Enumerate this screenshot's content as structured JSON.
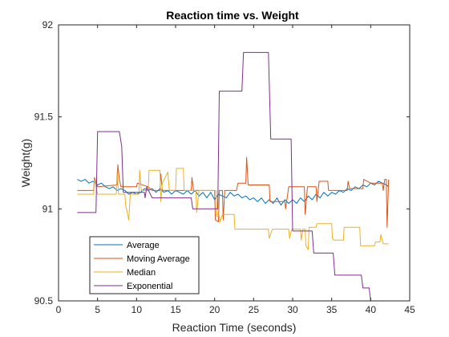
{
  "chart_data": {
    "type": "line",
    "title": "Reaction time vs. Weight",
    "xlabel": "Reaction Time (seconds)",
    "ylabel": "Weight(g)",
    "xlim": [
      0,
      45
    ],
    "ylim": [
      90.5,
      92
    ],
    "xticks": [
      "0",
      "5",
      "10",
      "15",
      "20",
      "25",
      "30",
      "35",
      "40",
      "45"
    ],
    "yticks": [
      "90.5",
      "91",
      "91.5",
      "92"
    ],
    "grid": false,
    "legend_position": "bottom-left",
    "series": [
      {
        "name": "Average",
        "color": "#0072BD",
        "points": [
          [
            2.4,
            91.16
          ],
          [
            2.9,
            91.15
          ],
          [
            3.4,
            91.16
          ],
          [
            3.9,
            91.14
          ],
          [
            4.4,
            91.15
          ],
          [
            5.0,
            91.13
          ],
          [
            5.5,
            91.14
          ],
          [
            6.0,
            91.12
          ],
          [
            6.5,
            91.11
          ],
          [
            7.0,
            91.12
          ],
          [
            7.5,
            91.1
          ],
          [
            8.0,
            91.11
          ],
          [
            8.5,
            91.1
          ],
          [
            9.0,
            91.08
          ],
          [
            9.5,
            91.09
          ],
          [
            10.0,
            91.08
          ],
          [
            10.5,
            91.09
          ],
          [
            11.0,
            91.11
          ],
          [
            11.5,
            91.1
          ],
          [
            12.0,
            91.11
          ],
          [
            12.5,
            91.09
          ],
          [
            13.0,
            91.11
          ],
          [
            13.5,
            91.09
          ],
          [
            14.0,
            91.1
          ],
          [
            14.5,
            91.08
          ],
          [
            15.0,
            91.1
          ],
          [
            15.5,
            91.09
          ],
          [
            16.0,
            91.08
          ],
          [
            16.5,
            91.1
          ],
          [
            17.0,
            91.08
          ],
          [
            17.5,
            91.1
          ],
          [
            18.0,
            91.07
          ],
          [
            18.5,
            91.09
          ],
          [
            19.0,
            91.06
          ],
          [
            19.5,
            91.09
          ],
          [
            20.0,
            91.05
          ],
          [
            20.5,
            91.08
          ],
          [
            21.0,
            91.07
          ],
          [
            21.5,
            91.06
          ],
          [
            22.0,
            91.09
          ],
          [
            22.5,
            91.07
          ],
          [
            23.0,
            91.08
          ],
          [
            23.5,
            91.06
          ],
          [
            24.0,
            91.07
          ],
          [
            24.5,
            91.05
          ],
          [
            25.0,
            91.06
          ],
          [
            25.5,
            91.04
          ],
          [
            26.0,
            91.06
          ],
          [
            26.5,
            91.03
          ],
          [
            27.0,
            91.05
          ],
          [
            27.5,
            91.03
          ],
          [
            28.0,
            91.06
          ],
          [
            28.5,
            91.02
          ],
          [
            29.0,
            91.05
          ],
          [
            29.5,
            91.03
          ],
          [
            30.0,
            91.05
          ],
          [
            30.5,
            91.03
          ],
          [
            31.0,
            91.06
          ],
          [
            31.5,
            91.04
          ],
          [
            32.0,
            91.07
          ],
          [
            32.5,
            91.05
          ],
          [
            33.0,
            91.08
          ],
          [
            33.5,
            91.06
          ],
          [
            34.0,
            91.09
          ],
          [
            34.5,
            91.07
          ],
          [
            35.0,
            91.09
          ],
          [
            35.5,
            91.08
          ],
          [
            36.0,
            91.1
          ],
          [
            36.5,
            91.09
          ],
          [
            37.0,
            91.11
          ],
          [
            37.5,
            91.1
          ],
          [
            38.0,
            91.12
          ],
          [
            38.5,
            91.11
          ],
          [
            39.0,
            91.13
          ],
          [
            39.5,
            91.12
          ],
          [
            40.0,
            91.14
          ],
          [
            40.5,
            91.13
          ],
          [
            41.0,
            91.15
          ],
          [
            41.5,
            91.14
          ],
          [
            42.0,
            91.13
          ],
          [
            42.3,
            91.12
          ]
        ]
      },
      {
        "name": "Moving Average",
        "color": "#D95319",
        "points": [
          [
            2.4,
            91.1
          ],
          [
            4.5,
            91.1
          ],
          [
            4.6,
            91.17
          ],
          [
            5.0,
            91.12
          ],
          [
            7.5,
            91.13
          ],
          [
            7.6,
            91.24
          ],
          [
            7.8,
            91.16
          ],
          [
            8.0,
            91.12
          ],
          [
            10.0,
            91.12
          ],
          [
            10.1,
            91.14
          ],
          [
            11.5,
            91.12
          ],
          [
            12.0,
            91.1
          ],
          [
            13.0,
            91.1
          ],
          [
            13.1,
            91.19
          ],
          [
            13.3,
            91.1
          ],
          [
            15.0,
            91.1
          ],
          [
            17.0,
            91.1
          ],
          [
            17.1,
            91.17
          ],
          [
            17.3,
            91.1
          ],
          [
            20.0,
            91.1
          ],
          [
            20.1,
            90.94
          ],
          [
            20.5,
            90.93
          ],
          [
            20.6,
            91.1
          ],
          [
            21.0,
            91.1
          ],
          [
            21.1,
            90.94
          ],
          [
            21.3,
            91.1
          ],
          [
            22.8,
            91.1
          ],
          [
            23.0,
            91.14
          ],
          [
            24.0,
            91.14
          ],
          [
            24.1,
            91.28
          ],
          [
            24.3,
            91.13
          ],
          [
            27.0,
            91.13
          ],
          [
            27.1,
            91.04
          ],
          [
            27.5,
            91.04
          ],
          [
            29.0,
            91.04
          ],
          [
            29.1,
            91.0
          ],
          [
            29.5,
            91.12
          ],
          [
            30.0,
            91.12
          ],
          [
            31.5,
            91.12
          ],
          [
            31.6,
            90.97
          ],
          [
            31.9,
            91.12
          ],
          [
            33.0,
            91.12
          ],
          [
            33.1,
            91.04
          ],
          [
            33.4,
            91.15
          ],
          [
            34.5,
            91.15
          ],
          [
            34.6,
            91.1
          ],
          [
            37.0,
            91.1
          ],
          [
            37.1,
            91.15
          ],
          [
            37.3,
            91.11
          ],
          [
            39.0,
            91.11
          ],
          [
            39.1,
            91.16
          ],
          [
            40.0,
            91.14
          ],
          [
            41.5,
            91.14
          ],
          [
            41.6,
            91.1
          ],
          [
            41.8,
            91.16
          ],
          [
            42.0,
            91.16
          ],
          [
            42.1,
            90.9
          ],
          [
            42.3,
            91.16
          ]
        ]
      },
      {
        "name": "Median",
        "color": "#EDB120",
        "points": [
          [
            2.4,
            91.08
          ],
          [
            4.5,
            91.08
          ],
          [
            4.6,
            91.16
          ],
          [
            5.0,
            91.08
          ],
          [
            7.4,
            91.08
          ],
          [
            7.5,
            91.2
          ],
          [
            7.7,
            91.08
          ],
          [
            8.5,
            91.08
          ],
          [
            8.6,
            91.02
          ],
          [
            9.0,
            90.94
          ],
          [
            9.2,
            91.08
          ],
          [
            10.3,
            91.08
          ],
          [
            10.4,
            91.21
          ],
          [
            10.6,
            91.1
          ],
          [
            11.5,
            91.1
          ],
          [
            11.6,
            91.21
          ],
          [
            13.0,
            91.21
          ],
          [
            13.1,
            91.04
          ],
          [
            13.3,
            91.14
          ],
          [
            14.0,
            91.2
          ],
          [
            14.2,
            91.1
          ],
          [
            15.0,
            91.1
          ],
          [
            15.1,
            91.22
          ],
          [
            16.0,
            91.22
          ],
          [
            16.1,
            91.1
          ],
          [
            17.6,
            91.1
          ],
          [
            17.7,
            90.98
          ],
          [
            18.0,
            91.1
          ],
          [
            20.2,
            91.1
          ],
          [
            20.3,
            90.96
          ],
          [
            20.6,
            90.96
          ],
          [
            20.7,
            90.93
          ],
          [
            21.0,
            90.97
          ],
          [
            22.5,
            90.97
          ],
          [
            22.6,
            90.89
          ],
          [
            26.9,
            90.89
          ],
          [
            27.0,
            90.84
          ],
          [
            27.4,
            90.89
          ],
          [
            29.5,
            90.89
          ],
          [
            29.6,
            90.84
          ],
          [
            29.9,
            90.89
          ],
          [
            31.0,
            90.89
          ],
          [
            31.1,
            90.83
          ],
          [
            31.3,
            90.89
          ],
          [
            31.6,
            90.89
          ],
          [
            31.7,
            90.8
          ],
          [
            32.0,
            90.78
          ],
          [
            32.1,
            90.9
          ],
          [
            33.0,
            90.9
          ],
          [
            33.1,
            90.92
          ],
          [
            35.0,
            90.92
          ],
          [
            35.1,
            90.84
          ],
          [
            35.3,
            90.83
          ],
          [
            36.5,
            90.83
          ],
          [
            36.6,
            90.9
          ],
          [
            38.6,
            90.9
          ],
          [
            38.7,
            90.8
          ],
          [
            40.5,
            90.8
          ],
          [
            40.6,
            90.82
          ],
          [
            41.2,
            90.82
          ],
          [
            41.3,
            90.86
          ],
          [
            41.6,
            90.81
          ],
          [
            42.3,
            90.81
          ]
        ]
      },
      {
        "name": "Exponential",
        "color": "#7E2F8E",
        "points": [
          [
            2.4,
            90.98
          ],
          [
            4.8,
            90.98
          ],
          [
            5.0,
            91.42
          ],
          [
            7.8,
            91.42
          ],
          [
            8.1,
            91.34
          ],
          [
            8.3,
            91.09
          ],
          [
            11.0,
            91.09
          ],
          [
            11.1,
            91.06
          ],
          [
            11.3,
            91.12
          ],
          [
            12.0,
            91.06
          ],
          [
            17.0,
            91.06
          ],
          [
            17.2,
            91.0
          ],
          [
            20.4,
            91.0
          ],
          [
            20.6,
            91.64
          ],
          [
            23.5,
            91.64
          ],
          [
            23.7,
            91.85
          ],
          [
            26.9,
            91.85
          ],
          [
            27.2,
            91.38
          ],
          [
            29.8,
            91.38
          ],
          [
            30.0,
            90.88
          ],
          [
            32.5,
            90.88
          ],
          [
            32.7,
            90.76
          ],
          [
            35.2,
            90.76
          ],
          [
            35.4,
            90.64
          ],
          [
            38.8,
            90.64
          ],
          [
            39.0,
            90.57
          ],
          [
            39.8,
            90.57
          ],
          [
            40.0,
            90.5
          ],
          [
            42.3,
            90.5
          ]
        ]
      }
    ]
  }
}
